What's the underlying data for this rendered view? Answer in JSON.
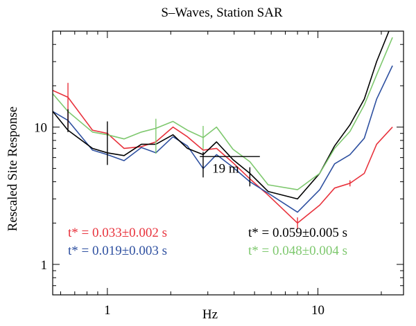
{
  "chart_data": {
    "type": "line",
    "title": "S–Waves,  Station  SAR",
    "xlabel": "Hz",
    "ylabel": "Rescaled  Site  Response",
    "x_scale": "log",
    "y_scale": "log",
    "xlim": [
      0.55,
      25.5
    ],
    "ylim": [
      0.6,
      50
    ],
    "x_ticks": [
      {
        "value": 1,
        "label": "1"
      },
      {
        "value": 10,
        "label": "10"
      }
    ],
    "y_ticks": [
      {
        "value": 1,
        "label": "1"
      },
      {
        "value": 10,
        "label": "10"
      }
    ],
    "grid": false,
    "series": [
      {
        "color": "#e8323c",
        "x": [
          0.55,
          0.65,
          0.85,
          1.0,
          1.2,
          1.45,
          1.7,
          2.05,
          2.4,
          2.85,
          3.3,
          3.95,
          4.75,
          5.8,
          8.0,
          10.2,
          12.0,
          14.2,
          16.6,
          19.0,
          22.6
        ],
        "y": [
          18.5,
          16.5,
          9.5,
          9.0,
          7.0,
          7.2,
          7.8,
          10.0,
          8.5,
          6.8,
          7.0,
          5.5,
          4.2,
          3.2,
          2.0,
          2.7,
          3.6,
          3.9,
          4.6,
          7.5,
          10.0
        ]
      },
      {
        "color": "#2e50a0",
        "x": [
          0.55,
          0.65,
          0.85,
          1.0,
          1.2,
          1.45,
          1.7,
          2.05,
          2.4,
          2.85,
          3.3,
          3.95,
          4.75,
          5.8,
          8.0,
          10.2,
          12.0,
          14.2,
          16.6,
          19.0,
          22.6
        ],
        "y": [
          13.0,
          11.2,
          6.8,
          6.3,
          5.7,
          7.1,
          6.5,
          8.5,
          7.3,
          5.0,
          6.3,
          5.1,
          4.0,
          3.3,
          2.4,
          3.5,
          5.4,
          6.3,
          8.3,
          16.0,
          28.0
        ]
      },
      {
        "color": "#000000",
        "x": [
          0.55,
          0.65,
          0.85,
          1.0,
          1.2,
          1.45,
          1.7,
          2.05,
          2.4,
          2.85,
          3.3,
          3.95,
          4.75,
          5.8,
          8.0,
          10.2,
          12.0,
          14.2,
          16.6,
          19.0,
          22.6
        ],
        "y": [
          13.0,
          9.5,
          7.0,
          6.5,
          6.2,
          7.5,
          7.5,
          8.8,
          7.0,
          6.3,
          7.8,
          5.8,
          4.6,
          3.4,
          3.0,
          4.6,
          7.3,
          10.4,
          16.0,
          30.0,
          58.0
        ]
      },
      {
        "color": "#7ec86e",
        "x": [
          0.55,
          0.65,
          0.85,
          1.0,
          1.2,
          1.45,
          1.7,
          2.05,
          2.4,
          2.85,
          3.3,
          3.95,
          4.75,
          5.8,
          8.0,
          10.2,
          12.0,
          14.2,
          16.6,
          19.0,
          22.6
        ],
        "y": [
          17.5,
          13.0,
          9.2,
          8.8,
          8.2,
          9.2,
          9.8,
          11.0,
          9.5,
          8.4,
          10.0,
          6.9,
          5.6,
          3.8,
          3.5,
          4.6,
          7.0,
          9.3,
          14.5,
          24.0,
          45.0
        ]
      }
    ],
    "error_bars": [
      {
        "x": 0.65,
        "y": 16.0,
        "lo": 10.0,
        "hi": 21.0,
        "color": "#e8323c"
      },
      {
        "x": 0.65,
        "y": 11.0,
        "lo": 9.2,
        "hi": 13.5,
        "color": "#000000"
      },
      {
        "x": 1.0,
        "y": 8.3,
        "lo": 5.3,
        "hi": 11.0,
        "color": "#000000"
      },
      {
        "x": 1.7,
        "y": 9.0,
        "lo": 6.4,
        "hi": 11.5,
        "color": "#7ec86e"
      },
      {
        "x": 2.85,
        "y": 8.8,
        "lo": 6.9,
        "hi": 10.2,
        "color": "#7ec86e"
      },
      {
        "x": 2.85,
        "y": 5.6,
        "lo": 4.3,
        "hi": 6.6,
        "color": "#000000"
      },
      {
        "x": 4.75,
        "y": 4.4,
        "lo": 3.7,
        "hi": 5.1,
        "color": "#000000"
      },
      {
        "x": 8.0,
        "y": 2.0,
        "lo": 1.8,
        "hi": 2.2,
        "color": "#e8323c"
      },
      {
        "x": 14.2,
        "y": 3.9,
        "lo": 3.7,
        "hi": 4.1,
        "color": "#e8323c"
      }
    ],
    "reference_line": {
      "x1": 2.75,
      "x2": 5.3,
      "y": 6.1,
      "color": "#000000"
    },
    "annotations": [
      {
        "text": "19  m",
        "x": 3.15,
        "y": 4.65,
        "color": "#000000"
      },
      {
        "text": "t*  =  0.033±0.002  s",
        "color": "#e8323c",
        "position": "lower-left"
      },
      {
        "text": "t*  =  0.019±0.003  s",
        "color": "#2e50a0",
        "position": "lower-left"
      },
      {
        "text": "t*  =  0.059±0.005  s",
        "color": "#000000",
        "position": "lower-right"
      },
      {
        "text": "t*  =  0.048±0.004  s",
        "color": "#7ec86e",
        "position": "lower-right"
      }
    ]
  }
}
